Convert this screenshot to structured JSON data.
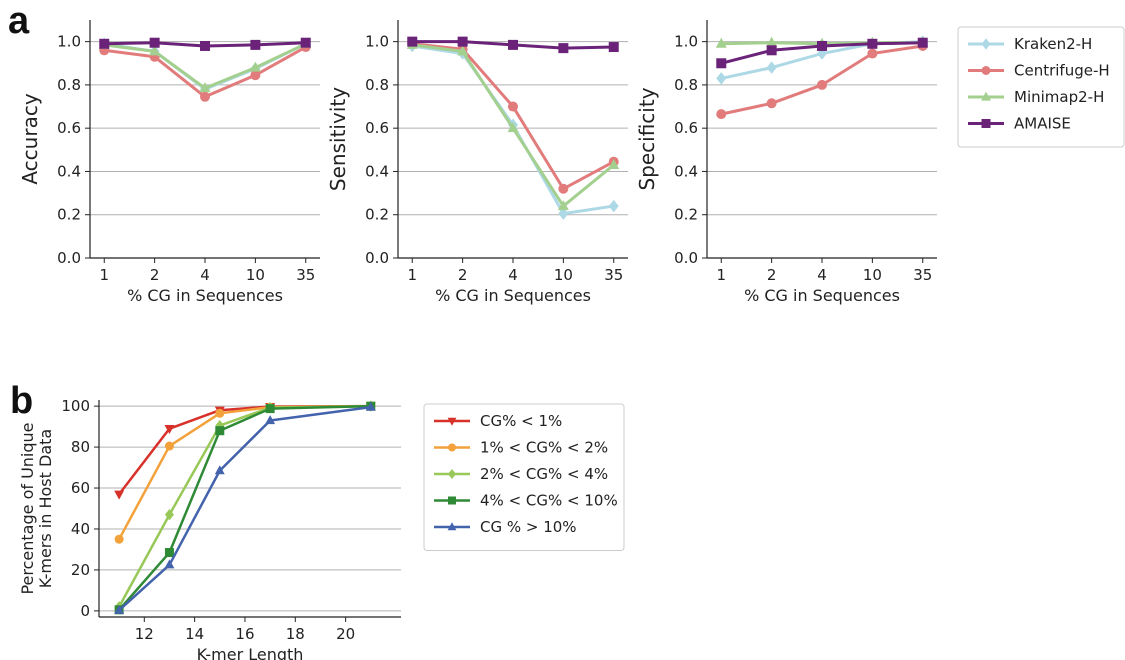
{
  "panels": {
    "a": "a",
    "b": "b"
  },
  "chart_data": [
    {
      "type": "line",
      "id": "a1",
      "title": "",
      "xlabel": "% CG in Sequences",
      "ylabel": "Accuracy",
      "x": [
        "1",
        "2",
        "4",
        "10",
        "35"
      ],
      "ylim": [
        0,
        1.1
      ],
      "yticks": [
        "0.0",
        "0.2",
        "0.4",
        "0.6",
        "0.8",
        "1.0"
      ],
      "grid": "y",
      "series": [
        {
          "name": "Kraken2-H",
          "color": "#add8e6",
          "marker": "diamond",
          "values": [
            0.99,
            0.955,
            0.78,
            0.875,
            0.99
          ]
        },
        {
          "name": "Centrifuge-H",
          "color": "#e27c7c",
          "marker": "circle",
          "values": [
            0.96,
            0.93,
            0.745,
            0.845,
            0.975
          ]
        },
        {
          "name": "Minimap2-H",
          "color": "#a3d08f",
          "marker": "triangle",
          "values": [
            0.985,
            0.955,
            0.785,
            0.88,
            0.99
          ]
        },
        {
          "name": "AMAISE",
          "color": "#6a2379",
          "marker": "square",
          "values": [
            0.99,
            0.995,
            0.98,
            0.985,
            0.995
          ]
        }
      ]
    },
    {
      "type": "line",
      "id": "a2",
      "title": "",
      "xlabel": "% CG in Sequences",
      "ylabel": "Sensitivity",
      "x": [
        "1",
        "2",
        "4",
        "10",
        "35"
      ],
      "ylim": [
        0,
        1.1
      ],
      "yticks": [
        "0.0",
        "0.2",
        "0.4",
        "0.6",
        "0.8",
        "1.0"
      ],
      "grid": "y",
      "series": [
        {
          "name": "Kraken2-H",
          "color": "#add8e6",
          "marker": "diamond",
          "values": [
            0.98,
            0.945,
            0.615,
            0.205,
            0.24
          ]
        },
        {
          "name": "Centrifuge-H",
          "color": "#e27c7c",
          "marker": "circle",
          "values": [
            0.99,
            0.965,
            0.7,
            0.32,
            0.445
          ]
        },
        {
          "name": "Minimap2-H",
          "color": "#a3d08f",
          "marker": "triangle",
          "values": [
            0.985,
            0.955,
            0.6,
            0.24,
            0.43
          ]
        },
        {
          "name": "AMAISE",
          "color": "#6a2379",
          "marker": "square",
          "values": [
            1.0,
            1.0,
            0.985,
            0.97,
            0.975
          ]
        }
      ]
    },
    {
      "type": "line",
      "id": "a3",
      "title": "",
      "xlabel": "% CG in Sequences",
      "ylabel": "Specificity",
      "x": [
        "1",
        "2",
        "4",
        "10",
        "35"
      ],
      "ylim": [
        0,
        1.1
      ],
      "yticks": [
        "0.0",
        "0.2",
        "0.4",
        "0.6",
        "0.8",
        "1.0"
      ],
      "grid": "y",
      "series": [
        {
          "name": "Kraken2-H",
          "color": "#add8e6",
          "marker": "diamond",
          "values": [
            0.83,
            0.88,
            0.945,
            0.99,
            1.0
          ]
        },
        {
          "name": "Centrifuge-H",
          "color": "#e27c7c",
          "marker": "circle",
          "values": [
            0.665,
            0.715,
            0.8,
            0.945,
            0.98
          ]
        },
        {
          "name": "Minimap2-H",
          "color": "#a3d08f",
          "marker": "triangle",
          "values": [
            0.99,
            0.995,
            0.99,
            0.995,
            0.995
          ]
        },
        {
          "name": "AMAISE",
          "color": "#6a2379",
          "marker": "square",
          "values": [
            0.9,
            0.96,
            0.98,
            0.99,
            0.995
          ]
        }
      ]
    },
    {
      "type": "line",
      "id": "b",
      "title": "",
      "xlabel": "K-mer Length",
      "ylabel": "Percentage of Unique K-mers in Host Data",
      "ylabel_lines": [
        "Percentage of Unique",
        "K-mers in Host Data"
      ],
      "x": [
        11,
        13,
        15,
        17,
        21
      ],
      "xlim": [
        10.2,
        22.2
      ],
      "xticks": [
        12,
        14,
        16,
        18,
        20
      ],
      "ylim": [
        -3,
        103
      ],
      "yticks": [
        0,
        20,
        40,
        60,
        80,
        100
      ],
      "grid": "y",
      "series": [
        {
          "name": "CG% < 1%",
          "color": "#d7312a",
          "marker": "triangle-down",
          "values": [
            57,
            89,
            98,
            99.8,
            100
          ]
        },
        {
          "name": "1% < CG% < 2%",
          "color": "#f3a23b",
          "marker": "circle",
          "values": [
            35,
            80.5,
            96.5,
            99.5,
            100
          ]
        },
        {
          "name": "2% < CG% < 4%",
          "color": "#98c858",
          "marker": "diamond",
          "values": [
            2,
            47,
            90.5,
            99.3,
            100
          ]
        },
        {
          "name": "4% < CG% < 10%",
          "color": "#2f8a35",
          "marker": "square",
          "values": [
            0.5,
            28.5,
            88,
            98.8,
            100
          ]
        },
        {
          "name": "CG % > 10%",
          "color": "#4463ad",
          "marker": "triangle",
          "values": [
            0.3,
            22.5,
            68.5,
            93,
            99.5
          ]
        }
      ]
    }
  ]
}
